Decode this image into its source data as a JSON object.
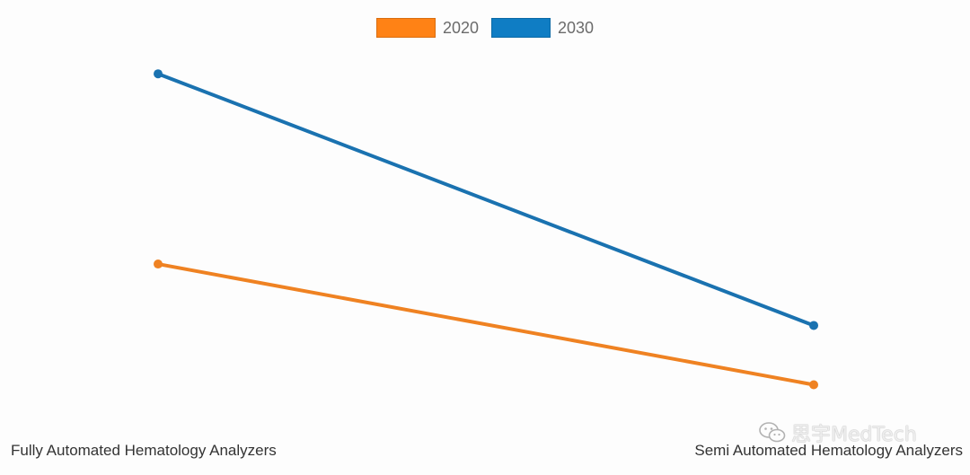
{
  "chart_data": {
    "type": "line",
    "categories": [
      "Fully Automated Hematology Analyzers",
      "Semi Automated Hematology Analyzers"
    ],
    "series": [
      {
        "name": "2020",
        "values": [
          40.2,
          11.9
        ],
        "color": "#ef8222"
      },
      {
        "name": "2030",
        "values": [
          84.8,
          25.8
        ],
        "color": "#1a72b0"
      }
    ],
    "ylim": [
      0,
      100
    ],
    "grid": false,
    "legend_position": "top-center"
  },
  "legend": {
    "items": [
      {
        "label": "2020",
        "color": "#ff8215"
      },
      {
        "label": "2030",
        "color": "#0f7dc4"
      }
    ]
  },
  "watermark": {
    "text": "思宇MedTech",
    "icon": "wechat-icon"
  }
}
